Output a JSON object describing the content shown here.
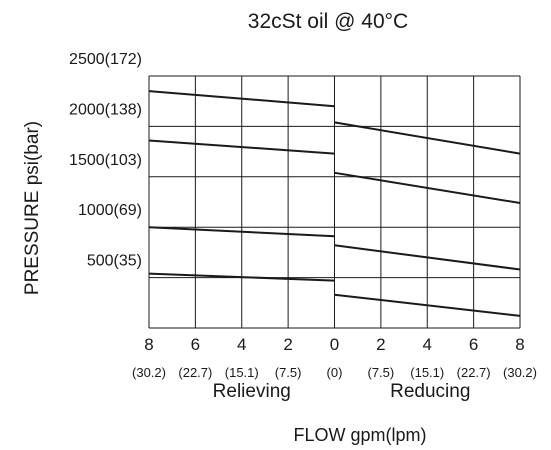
{
  "chart_data": {
    "type": "line",
    "title": "32cSt oil @ 40°C",
    "ylabel": "PRESSURE   psi(bar)",
    "xlabel": "FLOW gpm(lpm)",
    "ylim": [
      0,
      2500
    ],
    "y_ticks": [
      {
        "value": 500,
        "label": "500(35)"
      },
      {
        "value": 1000,
        "label": "1000(69)"
      },
      {
        "value": 1500,
        "label": "1500(103)"
      },
      {
        "value": 2000,
        "label": "2000(138)"
      },
      {
        "value": 2500,
        "label": "2500(172)"
      }
    ],
    "x_groups": [
      {
        "label": "Relieving",
        "direction": "left"
      },
      {
        "label": "Reducing",
        "direction": "right"
      }
    ],
    "x_ticks": [
      {
        "pos": -8,
        "gpm": "8",
        "lpm": "(30.2)"
      },
      {
        "pos": -6,
        "gpm": "6",
        "lpm": "(22.7)"
      },
      {
        "pos": -4,
        "gpm": "4",
        "lpm": "(15.1)"
      },
      {
        "pos": -2,
        "gpm": "2",
        "lpm": "(7.5)"
      },
      {
        "pos": 0,
        "gpm": "0",
        "lpm": "(0)"
      },
      {
        "pos": 2,
        "gpm": "2",
        "lpm": "(7.5)"
      },
      {
        "pos": 4,
        "gpm": "4",
        "lpm": "(15.1)"
      },
      {
        "pos": 6,
        "gpm": "6",
        "lpm": "(22.7)"
      },
      {
        "pos": 8,
        "gpm": "8",
        "lpm": "(30.2)"
      }
    ],
    "series": [
      {
        "relieving": [
          [
            -8,
            2350
          ],
          [
            0,
            2200
          ]
        ],
        "reducing": [
          [
            0,
            2040
          ],
          [
            8,
            1730
          ]
        ]
      },
      {
        "relieving": [
          [
            -8,
            1860
          ],
          [
            0,
            1730
          ]
        ],
        "reducing": [
          [
            0,
            1540
          ],
          [
            8,
            1240
          ]
        ]
      },
      {
        "relieving": [
          [
            -8,
            1000
          ],
          [
            0,
            910
          ]
        ],
        "reducing": [
          [
            0,
            820
          ],
          [
            8,
            580
          ]
        ]
      },
      {
        "relieving": [
          [
            -8,
            540
          ],
          [
            0,
            470
          ]
        ],
        "reducing": [
          [
            0,
            330
          ],
          [
            8,
            120
          ]
        ]
      }
    ],
    "grid": true
  }
}
